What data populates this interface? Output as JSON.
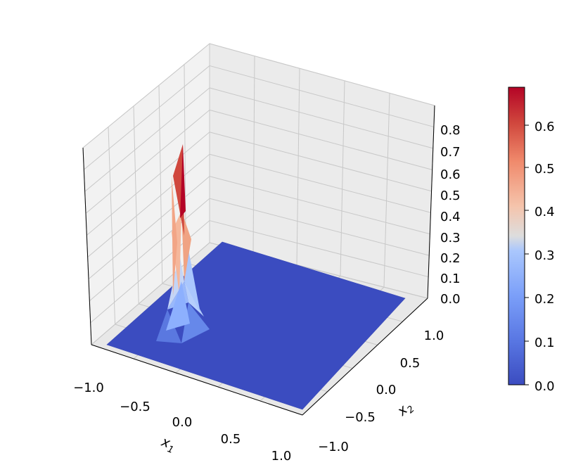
{
  "chart_data": {
    "type": "surface",
    "title": "",
    "xlabel": "x",
    "xlabel_sub": "1",
    "ylabel": "x",
    "ylabel_sub": "2",
    "zlabel": "",
    "xlim": [
      -1.0,
      1.0
    ],
    "ylim": [
      -1.0,
      1.0
    ],
    "zlim": [
      0.0,
      0.9
    ],
    "x_ticks": [
      "−1.0",
      "−0.5",
      "0.0",
      "0.5",
      "1.0"
    ],
    "y_ticks": [
      "−1.0",
      "−0.5",
      "0.0",
      "0.5",
      "1.0"
    ],
    "z_ticks": [
      "0.0",
      "0.1",
      "0.2",
      "0.3",
      "0.4",
      "0.5",
      "0.6",
      "0.7",
      "0.8"
    ],
    "peak": {
      "x": -0.75,
      "y": -0.75,
      "z": 0.88
    },
    "peak_max_color_value": 0.68,
    "colormap": "coolwarm",
    "colorbar": {
      "min": 0.0,
      "max": 0.68,
      "ticks": [
        "0.0",
        "0.1",
        "0.2",
        "0.3",
        "0.4",
        "0.5",
        "0.6"
      ]
    },
    "grid": true
  }
}
